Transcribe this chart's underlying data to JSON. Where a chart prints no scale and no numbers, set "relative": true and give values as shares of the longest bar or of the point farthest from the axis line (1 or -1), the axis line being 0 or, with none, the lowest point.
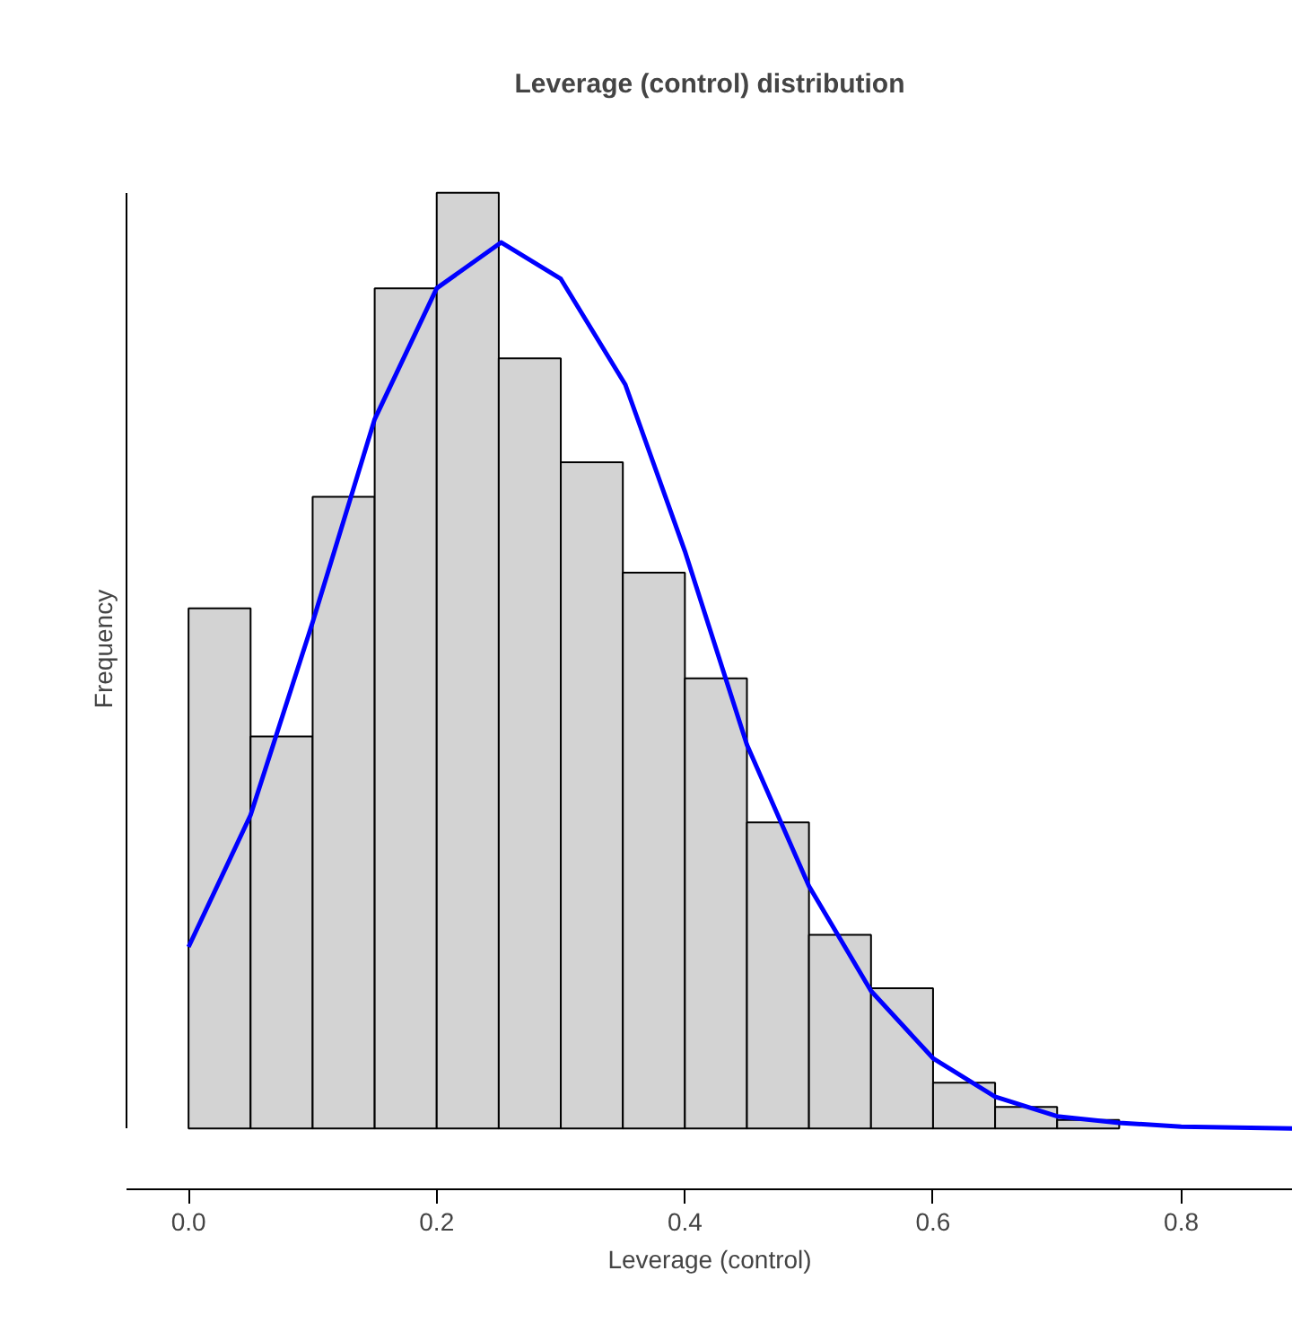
{
  "chart_data": {
    "type": "histogram",
    "title": "Leverage (control) distribution",
    "xlabel": "Leverage (control)",
    "ylabel": "Frequency",
    "relative": true,
    "bins": [
      0.0,
      0.05,
      0.1,
      0.15,
      0.2,
      0.25,
      0.3,
      0.35,
      0.4,
      0.45,
      0.5,
      0.55,
      0.6,
      0.65,
      0.7,
      0.75
    ],
    "values": [
      0.556,
      0.419,
      0.675,
      0.898,
      1,
      0.823,
      0.712,
      0.594,
      0.481,
      0.327,
      0.207,
      0.15,
      0.049,
      0.023,
      0.009
    ],
    "color": "#d3d3d3",
    "series": [
      {
        "type": "line",
        "color": "#0000ff",
        "x": [
          0.0,
          0.05,
          0.1,
          0.15,
          0.2,
          0.252,
          0.3,
          0.352,
          0.4,
          0.45,
          0.5,
          0.55,
          0.6,
          0.65,
          0.7,
          0.75,
          0.8,
          0.89
        ],
        "values": [
          0.194,
          0.335,
          0.541,
          0.758,
          0.898,
          0.947,
          0.908,
          0.795,
          0.617,
          0.41,
          0.259,
          0.147,
          0.075,
          0.034,
          0.013,
          0.006,
          0.002,
          0
        ]
      }
    ],
    "xlim": [
      -0.05,
      0.89
    ],
    "xticks": [
      {
        "value": 0,
        "label": "0.0"
      },
      0.2,
      0.4,
      0.6,
      0.8
    ],
    "grid": false
  }
}
